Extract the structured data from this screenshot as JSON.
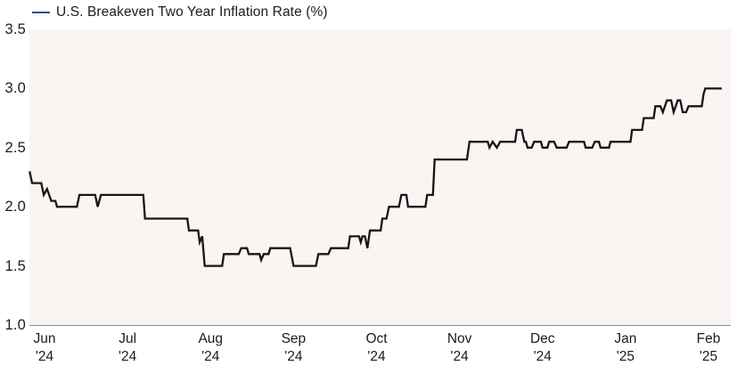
{
  "legend": {
    "label": "U.S. Breakeven Two Year Inflation Rate (%)",
    "marker_color": "#2e4d8d"
  },
  "chart_data": {
    "type": "line",
    "title": "U.S. Breakeven Two Year Inflation Rate (%)",
    "grid": false,
    "legend_position": "top-left",
    "plot_bg": "#faf4f3",
    "axis_line_color": "#909090",
    "x_axis": {
      "unit": "months_from_jun_2024",
      "tick_labels": [
        {
          "month": "Jun",
          "year": "'24"
        },
        {
          "month": "Jul",
          "year": "'24"
        },
        {
          "month": "Aug",
          "year": "'24"
        },
        {
          "month": "Sep",
          "year": "'24"
        },
        {
          "month": "Oct",
          "year": "'24"
        },
        {
          "month": "Nov",
          "year": "'24"
        },
        {
          "month": "Dec",
          "year": "'24"
        },
        {
          "month": "Jan",
          "year": "'25"
        },
        {
          "month": "Feb",
          "year": "'25"
        }
      ]
    },
    "y_axis": {
      "range": [
        1.0,
        3.5
      ],
      "ticks": [
        3.5,
        3.0,
        2.5,
        2.0,
        1.5,
        1.0
      ]
    },
    "series": [
      {
        "name": "U.S. Breakeven Two Year Inflation Rate (%)",
        "color": "#161616",
        "points": [
          [
            -0.18,
            2.3
          ],
          [
            -0.15,
            2.2
          ],
          [
            -0.04,
            2.2
          ],
          [
            -0.01,
            2.1
          ],
          [
            0.03,
            2.15
          ],
          [
            0.08,
            2.05
          ],
          [
            0.13,
            2.05
          ],
          [
            0.15,
            2.0
          ],
          [
            0.39,
            2.0
          ],
          [
            0.42,
            2.1
          ],
          [
            0.61,
            2.1
          ],
          [
            0.64,
            2.0
          ],
          [
            0.68,
            2.1
          ],
          [
            1.19,
            2.1
          ],
          [
            1.21,
            1.9
          ],
          [
            1.72,
            1.9
          ],
          [
            1.74,
            1.8
          ],
          [
            1.85,
            1.8
          ],
          [
            1.87,
            1.7
          ],
          [
            1.9,
            1.75
          ],
          [
            1.93,
            1.5
          ],
          [
            2.14,
            1.5
          ],
          [
            2.16,
            1.6
          ],
          [
            2.34,
            1.6
          ],
          [
            2.37,
            1.65
          ],
          [
            2.44,
            1.65
          ],
          [
            2.46,
            1.6
          ],
          [
            2.59,
            1.6
          ],
          [
            2.61,
            1.55
          ],
          [
            2.64,
            1.6
          ],
          [
            2.7,
            1.6
          ],
          [
            2.72,
            1.65
          ],
          [
            2.96,
            1.65
          ],
          [
            3.0,
            1.5
          ],
          [
            3.27,
            1.5
          ],
          [
            3.3,
            1.6
          ],
          [
            3.42,
            1.6
          ],
          [
            3.45,
            1.65
          ],
          [
            3.66,
            1.65
          ],
          [
            3.68,
            1.75
          ],
          [
            3.79,
            1.75
          ],
          [
            3.81,
            1.7
          ],
          [
            3.83,
            1.75
          ],
          [
            3.86,
            1.75
          ],
          [
            3.89,
            1.65
          ],
          [
            3.92,
            1.8
          ],
          [
            4.05,
            1.8
          ],
          [
            4.07,
            1.9
          ],
          [
            4.12,
            1.9
          ],
          [
            4.15,
            2.0
          ],
          [
            4.27,
            2.0
          ],
          [
            4.3,
            2.1
          ],
          [
            4.36,
            2.1
          ],
          [
            4.38,
            2.0
          ],
          [
            4.59,
            2.0
          ],
          [
            4.61,
            2.1
          ],
          [
            4.68,
            2.1
          ],
          [
            4.7,
            2.4
          ],
          [
            5.09,
            2.4
          ],
          [
            5.12,
            2.55
          ],
          [
            5.34,
            2.55
          ],
          [
            5.36,
            2.5
          ],
          [
            5.4,
            2.55
          ],
          [
            5.45,
            2.5
          ],
          [
            5.49,
            2.55
          ],
          [
            5.67,
            2.55
          ],
          [
            5.69,
            2.65
          ],
          [
            5.75,
            2.65
          ],
          [
            5.78,
            2.55
          ],
          [
            5.8,
            2.55
          ],
          [
            5.82,
            2.5
          ],
          [
            5.87,
            2.5
          ],
          [
            5.9,
            2.55
          ],
          [
            5.98,
            2.55
          ],
          [
            6.0,
            2.5
          ],
          [
            6.06,
            2.5
          ],
          [
            6.08,
            2.55
          ],
          [
            6.14,
            2.55
          ],
          [
            6.17,
            2.5
          ],
          [
            6.29,
            2.5
          ],
          [
            6.32,
            2.55
          ],
          [
            6.5,
            2.55
          ],
          [
            6.52,
            2.5
          ],
          [
            6.6,
            2.5
          ],
          [
            6.63,
            2.55
          ],
          [
            6.68,
            2.55
          ],
          [
            6.7,
            2.5
          ],
          [
            6.8,
            2.5
          ],
          [
            6.82,
            2.55
          ],
          [
            7.06,
            2.55
          ],
          [
            7.08,
            2.65
          ],
          [
            7.2,
            2.65
          ],
          [
            7.22,
            2.75
          ],
          [
            7.34,
            2.75
          ],
          [
            7.36,
            2.85
          ],
          [
            7.42,
            2.85
          ],
          [
            7.45,
            2.8
          ],
          [
            7.5,
            2.9
          ],
          [
            7.55,
            2.9
          ],
          [
            7.58,
            2.8
          ],
          [
            7.63,
            2.9
          ],
          [
            7.66,
            2.9
          ],
          [
            7.69,
            2.8
          ],
          [
            7.73,
            2.8
          ],
          [
            7.76,
            2.85
          ],
          [
            7.92,
            2.85
          ],
          [
            7.94,
            2.95
          ],
          [
            7.96,
            3.0
          ],
          [
            8.16,
            3.0
          ]
        ]
      }
    ]
  }
}
